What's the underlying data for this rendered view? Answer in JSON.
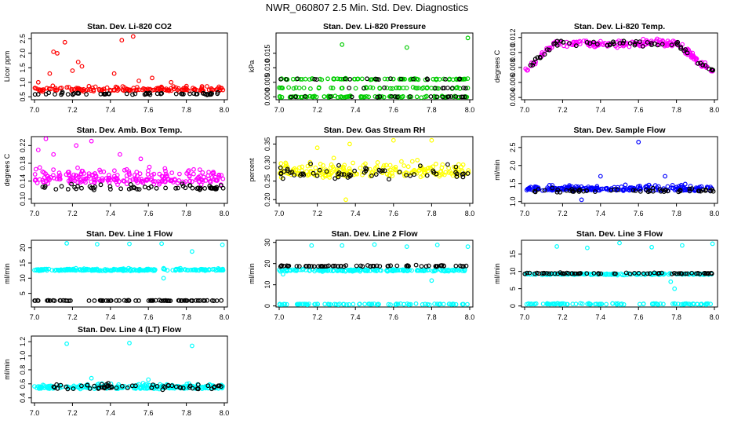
{
  "page": {
    "title": "NWR_060807  2.5 Min. Std. Dev. Diagnostics"
  },
  "colors": {
    "black": "#000000",
    "red": "#ff0000",
    "green": "#00cc00",
    "magenta": "#ff00ff",
    "yellow": "#ffff00",
    "blue": "#0000ff",
    "cyan": "#00ffff"
  },
  "chart_data": [
    {
      "id": "co2",
      "type": "scatter",
      "title": "Stan. Dev. Li-820 CO2",
      "xlabel": "",
      "ylabel": "Licor ppm",
      "xlim": [
        7.0,
        8.0
      ],
      "ylim": [
        0.4,
        2.7
      ],
      "xticks": [
        "7.0",
        "7.2",
        "7.4",
        "7.6",
        "7.8",
        "8.0"
      ],
      "yticks": [
        "0.5",
        "1.0",
        "1.5",
        "2.0",
        "2.5"
      ],
      "series": [
        {
          "name": "main",
          "color": "red",
          "base": 0.75,
          "spread": 0.12,
          "count": 160,
          "outliers": [
            [
              7.02,
              1.0
            ],
            [
              7.08,
              1.3
            ],
            [
              7.1,
              2.05
            ],
            [
              7.12,
              2.0
            ],
            [
              7.16,
              2.38
            ],
            [
              7.2,
              1.4
            ],
            [
              7.23,
              1.7
            ],
            [
              7.25,
              1.55
            ],
            [
              7.42,
              1.3
            ],
            [
              7.46,
              2.45
            ],
            [
              7.52,
              2.58
            ],
            [
              7.55,
              1.05
            ],
            [
              7.62,
              1.15
            ],
            [
              7.72,
              1.0
            ]
          ]
        },
        {
          "name": "sub",
          "color": "black",
          "base": 0.6,
          "spread": 0.06,
          "count": 55,
          "outliers": []
        }
      ]
    },
    {
      "id": "pressure",
      "type": "scatter",
      "title": "Stan. Dev. Li-820 Pressure",
      "xlabel": "",
      "ylabel": "kPa",
      "xlim": [
        7.0,
        8.0
      ],
      "ylim": [
        -0.001,
        0.022
      ],
      "xticks": [
        "7.0",
        "7.2",
        "7.4",
        "7.6",
        "7.8",
        "8.0"
      ],
      "yticks": [
        "0.000",
        "0.005",
        "0.010",
        "0.015"
      ],
      "series": [
        {
          "name": "main",
          "color": "green",
          "levels": [
            0.0,
            0.00305,
            0.0061
          ],
          "spread": 0.0003,
          "count": 220,
          "outliers": [
            [
              7.33,
              0.018
            ],
            [
              7.67,
              0.017
            ],
            [
              7.99,
              0.0203
            ]
          ]
        },
        {
          "name": "sub",
          "color": "black",
          "levels": [
            0.0,
            0.00305,
            0.0061
          ],
          "spread": 0.0002,
          "count": 50,
          "outliers": []
        }
      ]
    },
    {
      "id": "temp",
      "type": "scatter",
      "title": "Stan. Dev. Li-820 Temp.",
      "xlabel": "",
      "ylabel": "degrees C",
      "xlim": [
        7.0,
        8.0
      ],
      "ylim": [
        0.0037,
        0.0126
      ],
      "xticks": [
        "7.0",
        "7.2",
        "7.4",
        "7.6",
        "7.8",
        "8.0"
      ],
      "yticks": [
        "0.004",
        "0.006",
        "0.008",
        "0.010",
        "0.012"
      ],
      "series": [
        {
          "name": "main",
          "color": "magenta",
          "curve": "arch",
          "spread": 0.0006,
          "count": 210,
          "outliers": []
        },
        {
          "name": "sub",
          "color": "black",
          "curve": "arch",
          "spread": 0.0004,
          "count": 60,
          "outliers": []
        }
      ]
    },
    {
      "id": "boxtemp",
      "type": "scatter",
      "title": "Stan. Dev. Amb. Box Temp.",
      "xlabel": "",
      "ylabel": "degrees C",
      "xlim": [
        7.0,
        8.0
      ],
      "ylim": [
        0.09,
        0.24
      ],
      "xticks": [
        "7.0",
        "7.2",
        "7.4",
        "7.6",
        "7.8",
        "8.0"
      ],
      "yticks": [
        "0.10",
        "0.14",
        "0.18",
        "0.22"
      ],
      "series": [
        {
          "name": "main",
          "color": "magenta",
          "base": 0.145,
          "spread": 0.022,
          "count": 230,
          "outliers": [
            [
              7.02,
              0.21
            ],
            [
              7.06,
              0.235
            ],
            [
              7.1,
              0.2
            ],
            [
              7.22,
              0.22
            ],
            [
              7.3,
              0.23
            ],
            [
              7.45,
              0.2
            ],
            [
              7.56,
              0.19
            ]
          ]
        },
        {
          "name": "sub",
          "color": "black",
          "base": 0.125,
          "spread": 0.01,
          "count": 60,
          "outliers": []
        }
      ]
    },
    {
      "id": "rh",
      "type": "scatter",
      "title": "Stan. Dev. Gas Stream RH",
      "xlabel": "",
      "ylabel": "percent",
      "xlim": [
        7.0,
        8.0
      ],
      "ylim": [
        0.19,
        0.37
      ],
      "xticks": [
        "7.0",
        "7.2",
        "7.4",
        "7.6",
        "7.8",
        "8.0"
      ],
      "yticks": [
        "0.20",
        "0.25",
        "0.30",
        "0.35"
      ],
      "series": [
        {
          "name": "main",
          "color": "yellow",
          "base": 0.275,
          "spread": 0.028,
          "count": 220,
          "outliers": [
            [
              7.2,
              0.34
            ],
            [
              7.37,
              0.35
            ],
            [
              7.6,
              0.36
            ],
            [
              7.8,
              0.36
            ],
            [
              7.35,
              0.2
            ]
          ]
        },
        {
          "name": "sub",
          "color": "black",
          "base": 0.27,
          "spread": 0.025,
          "count": 60,
          "outliers": []
        }
      ]
    },
    {
      "id": "sampleflow",
      "type": "scatter",
      "title": "Stan. Dev. Sample Flow",
      "xlabel": "",
      "ylabel": "ml/min",
      "xlim": [
        7.0,
        8.0
      ],
      "ylim": [
        0.95,
        2.8
      ],
      "xticks": [
        "7.0",
        "7.2",
        "7.4",
        "7.6",
        "7.8",
        "8.0"
      ],
      "yticks": [
        "1.0",
        "1.5",
        "2.0",
        "2.5"
      ],
      "series": [
        {
          "name": "main",
          "color": "blue",
          "base": 1.35,
          "spread": 0.1,
          "count": 230,
          "outliers": [
            [
              7.6,
              2.65
            ],
            [
              7.4,
              1.7
            ],
            [
              7.74,
              1.7
            ],
            [
              7.3,
              1.05
            ]
          ]
        },
        {
          "name": "sub",
          "color": "black",
          "base": 1.3,
          "spread": 0.08,
          "count": 55,
          "outliers": []
        }
      ]
    },
    {
      "id": "line1",
      "type": "scatter",
      "title": "Stan. Dev. Line 1 Flow",
      "xlabel": "",
      "ylabel": "ml/min",
      "xlim": [
        7.0,
        8.0
      ],
      "ylim": [
        0.5,
        22.5
      ],
      "xticks": [
        "7.0",
        "7.2",
        "7.4",
        "7.6",
        "7.8",
        "8.0"
      ],
      "yticks": [
        "5",
        "10",
        "15",
        "20"
      ],
      "series": [
        {
          "name": "main",
          "color": "cyan",
          "base": 12.7,
          "spread": 0.5,
          "count": 230,
          "outliers": [
            [
              7.17,
              21.5
            ],
            [
              7.33,
              21.2
            ],
            [
              7.5,
              21.3
            ],
            [
              7.67,
              21.4
            ],
            [
              7.83,
              18.8
            ],
            [
              7.99,
              21.0
            ],
            [
              7.68,
              10.0
            ]
          ]
        },
        {
          "name": "sub",
          "color": "black",
          "base": 2.6,
          "spread": 0.12,
          "count": 75,
          "outliers": []
        }
      ]
    },
    {
      "id": "line2",
      "type": "scatter",
      "title": "Stan. Dev. Line 2 Flow",
      "xlabel": "",
      "ylabel": "ml/min",
      "xlim": [
        7.0,
        8.0
      ],
      "ylim": [
        -0.5,
        31
      ],
      "xticks": [
        "7.0",
        "7.2",
        "7.4",
        "7.6",
        "7.8",
        "8.0"
      ],
      "yticks": [
        "0",
        "10",
        "20",
        "30"
      ],
      "series": [
        {
          "name": "main",
          "color": "cyan",
          "band": [
            16.8,
            0.6,
            0.8,
            0.3
          ],
          "count": 260,
          "outliers": [
            [
              7.17,
              28.5
            ],
            [
              7.33,
              28.5
            ],
            [
              7.5,
              29.0
            ],
            [
              7.67,
              28.0
            ],
            [
              7.83,
              28.8
            ],
            [
              7.99,
              28.0
            ],
            [
              7.8,
              12.0
            ],
            [
              7.02,
              15.0
            ]
          ]
        },
        {
          "name": "sub",
          "color": "black",
          "base": 18.8,
          "spread": 0.4,
          "count": 70,
          "outliers": []
        }
      ]
    },
    {
      "id": "line3",
      "type": "scatter",
      "title": "Stan. Dev. Line 3 Flow",
      "xlabel": "",
      "ylabel": "ml/min",
      "xlim": [
        7.0,
        8.0
      ],
      "ylim": [
        -0.3,
        19
      ],
      "xticks": [
        "7.0",
        "7.2",
        "7.4",
        "7.6",
        "7.8",
        "8.0"
      ],
      "yticks": [
        "0",
        "5",
        "10",
        "15"
      ],
      "series": [
        {
          "name": "main",
          "color": "cyan",
          "band": [
            9.2,
            0.3,
            0.6,
            0.2
          ],
          "count": 260,
          "outliers": [
            [
              7.17,
              17.2
            ],
            [
              7.33,
              16.8
            ],
            [
              7.5,
              18.2
            ],
            [
              7.67,
              17.0
            ],
            [
              7.83,
              17.5
            ],
            [
              7.99,
              18.0
            ],
            [
              7.79,
              5.0
            ],
            [
              7.77,
              7.0
            ]
          ]
        },
        {
          "name": "sub",
          "color": "black",
          "base": 9.4,
          "spread": 0.25,
          "count": 70,
          "outliers": []
        }
      ]
    },
    {
      "id": "line4",
      "type": "scatter",
      "title": "Stan. Dev. Line 4 (LT) Flow",
      "xlabel": "",
      "ylabel": "ml/min",
      "xlim": [
        7.0,
        8.0
      ],
      "ylim": [
        0.33,
        1.28
      ],
      "xticks": [
        "7.0",
        "7.2",
        "7.4",
        "7.6",
        "7.8",
        "8.0"
      ],
      "yticks": [
        "0.4",
        "0.6",
        "0.8",
        "1.0",
        "1.2"
      ],
      "series": [
        {
          "name": "main",
          "color": "cyan",
          "base": 0.55,
          "spread": 0.045,
          "count": 230,
          "outliers": [
            [
              7.17,
              1.17
            ],
            [
              7.5,
              1.18
            ],
            [
              7.83,
              1.14
            ],
            [
              7.3,
              0.68
            ],
            [
              7.6,
              0.66
            ]
          ]
        },
        {
          "name": "sub",
          "color": "black",
          "base": 0.55,
          "spread": 0.055,
          "count": 60,
          "outliers": []
        }
      ]
    }
  ]
}
